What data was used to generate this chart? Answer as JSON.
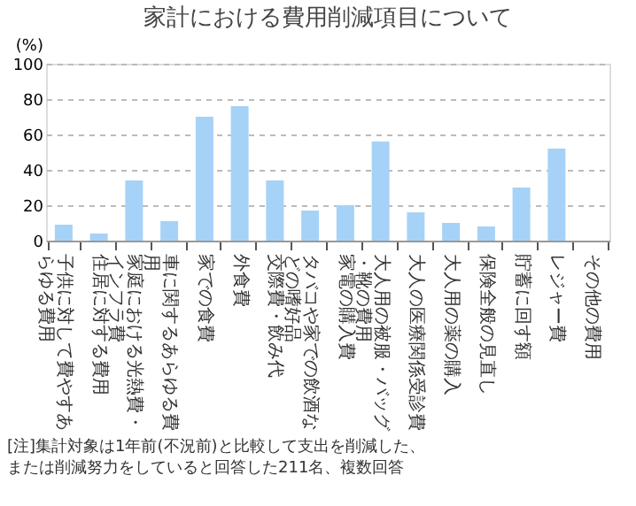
{
  "chart_data": {
    "type": "bar",
    "title": "家計における費用削減項目について",
    "ylabel": "(%)",
    "categories": [
      "子供に対して費やすあらゆる費用",
      "住居に対する費用",
      "家庭における光熱費・インフラ費",
      "車に関するあらゆる費用",
      "家での食費",
      "外食費",
      "交際費・飲み代",
      "タバコや家での飲酒などの嗜好品",
      "家電の購入費",
      "大人用の被服・バッグ・靴の費用",
      "大人の医療関係受診費",
      "大人用の薬の購入",
      "保険全般の見直し",
      "貯蓄に回す額",
      "レジャー費",
      "その他の費用"
    ],
    "values": [
      9,
      4,
      34,
      11,
      70,
      76,
      34,
      17,
      20,
      56,
      16,
      10,
      8,
      30,
      52,
      0
    ],
    "color": "#a6d2f7",
    "ylim": [
      0,
      100
    ],
    "yticks": [
      0,
      20,
      40,
      60,
      80,
      100
    ],
    "grid": "y",
    "annotations": [
      "[注]集計対象は1年前(不況前)と比較して支出を削減した、",
      "　　または削減努力をしていると回答した211名、複数回答"
    ]
  }
}
